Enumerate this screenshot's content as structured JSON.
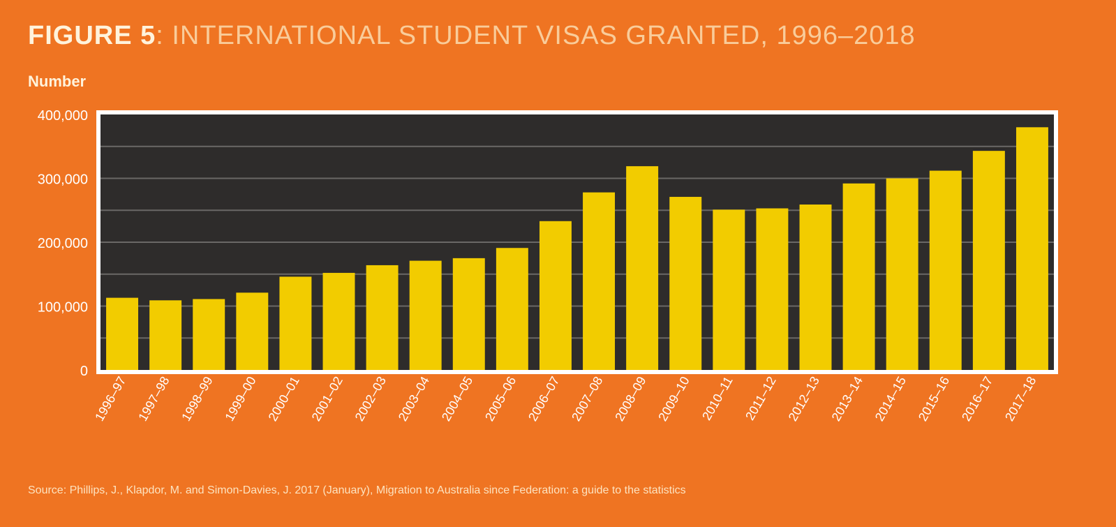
{
  "header": {
    "figure_label": "FIGURE 5",
    "title_rest": ": INTERNATIONAL STUDENT VISAS GRANTED, 1996–2018"
  },
  "source_text": "Source: Phillips, J., Klapdor, M. and Simon-Davies, J. 2017 (January), Migration to Australia since Federation: a guide to the statistics",
  "colors": {
    "background": "#ef7422",
    "plot_background": "#2e2c2b",
    "bar": "#f2cc00",
    "frame": "#ffffff",
    "gridline": "#6a6866"
  },
  "chart_data": {
    "type": "bar",
    "title": "FIGURE 5: INTERNATIONAL STUDENT VISAS GRANTED, 1996–2018",
    "ylabel": "Number",
    "xlabel": "",
    "ylim": [
      0,
      400000
    ],
    "yticks": [
      0,
      100000,
      200000,
      300000,
      400000
    ],
    "ytick_labels": [
      "0",
      "100,000",
      "200,000",
      "300,000",
      "400,000"
    ],
    "grid": true,
    "categories": [
      "1996–97",
      "1997–98",
      "1998–99",
      "1999–00",
      "2000–01",
      "2001–02",
      "2002–03",
      "2003–04",
      "2004–05",
      "2005–06",
      "2006–07",
      "2007–08",
      "2008–09",
      "2009–10",
      "2010–11",
      "2011–12",
      "2012–13",
      "2013–14",
      "2014–15",
      "2015–16",
      "2016–17",
      "2017–18"
    ],
    "values": [
      113000,
      109000,
      111000,
      121000,
      146000,
      152000,
      164000,
      171000,
      175000,
      191000,
      233000,
      278000,
      319000,
      271000,
      251000,
      253000,
      259000,
      292000,
      300000,
      312000,
      343000,
      380000
    ]
  }
}
